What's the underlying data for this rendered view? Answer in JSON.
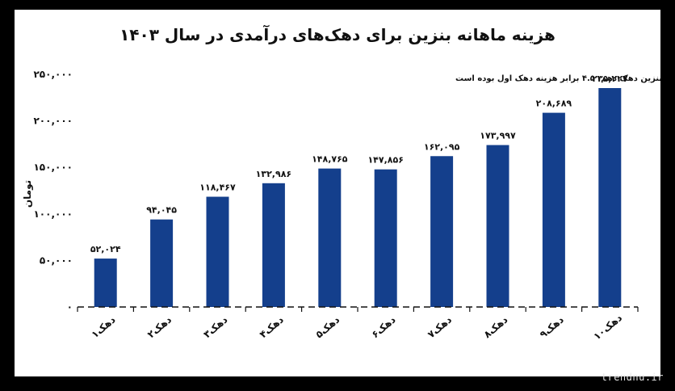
{
  "chart_data": {
    "type": "bar",
    "title": "هزینه ماهانه بنزین برای دهک‌های درآمدی در سال ۱۴۰۳",
    "annotation": "هزینه بنزین دهک دهم، ۴.۵ برابر هزینه دهک اول بوده است",
    "ylabel": "تومان",
    "xlabel": "",
    "categories": [
      "دهک۱",
      "دهک۲",
      "دهک۳",
      "دهک۴",
      "دهک۵",
      "دهک۶",
      "دهک۷",
      "دهک۸",
      "دهک۹",
      "دهک۱۰"
    ],
    "values": [
      52024,
      94045,
      118467,
      132986,
      148765,
      147856,
      162095,
      173997,
      208689,
      235227
    ],
    "value_labels": [
      "۵۲,۰۲۴",
      "۹۴,۰۴۵",
      "۱۱۸,۴۶۷",
      "۱۳۲,۹۸۶",
      "۱۴۸,۷۶۵",
      "۱۴۷,۸۵۶",
      "۱۶۲,۰۹۵",
      "۱۷۳,۹۹۷",
      "۲۰۸,۶۸۹",
      "۲۳۵,۲۲۷"
    ],
    "ylim": [
      0,
      250000
    ],
    "yticks": [
      0,
      50000,
      100000,
      150000,
      200000,
      250000
    ],
    "ytick_labels": [
      "۰",
      "۵۰,۰۰۰",
      "۱۰۰,۰۰۰",
      "۱۵۰,۰۰۰",
      "۲۰۰,۰۰۰",
      "۲۵۰,۰۰۰"
    ],
    "grid": false,
    "bar_color": "#143f8c",
    "text_color": "#111111"
  },
  "watermark": {
    "text": "trendnu.ir"
  }
}
